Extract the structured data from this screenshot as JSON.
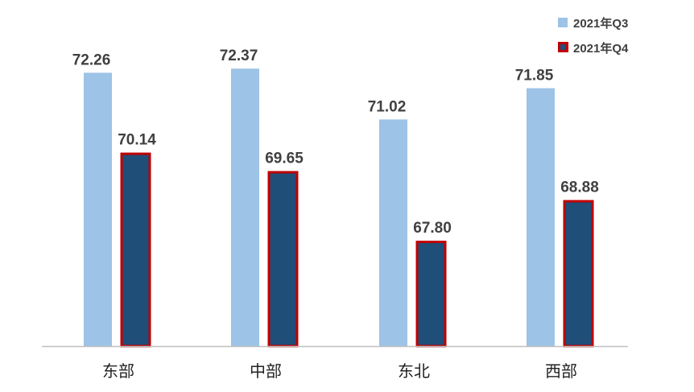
{
  "chart_data": {
    "type": "bar",
    "title": "",
    "xlabel": "",
    "ylabel": "",
    "categories": [
      "东部",
      "中部",
      "东北",
      "西部"
    ],
    "series": [
      {
        "name": "2021年Q3",
        "values": [
          72.26,
          72.37,
          71.02,
          71.85
        ],
        "color": "#9DC3E6"
      },
      {
        "name": "2021年Q4",
        "values": [
          70.14,
          69.65,
          67.8,
          68.88
        ],
        "color": "#1F4E79",
        "border": "#C00000"
      }
    ],
    "data_labels": [
      [
        "72.26",
        "72.37",
        "71.02",
        "71.85"
      ],
      [
        "70.14",
        "69.65",
        "67.80",
        "68.88"
      ]
    ],
    "ylim": [
      65,
      74
    ],
    "grid": false,
    "legend": "top-right",
    "axis_color": "#BFBFBF"
  }
}
